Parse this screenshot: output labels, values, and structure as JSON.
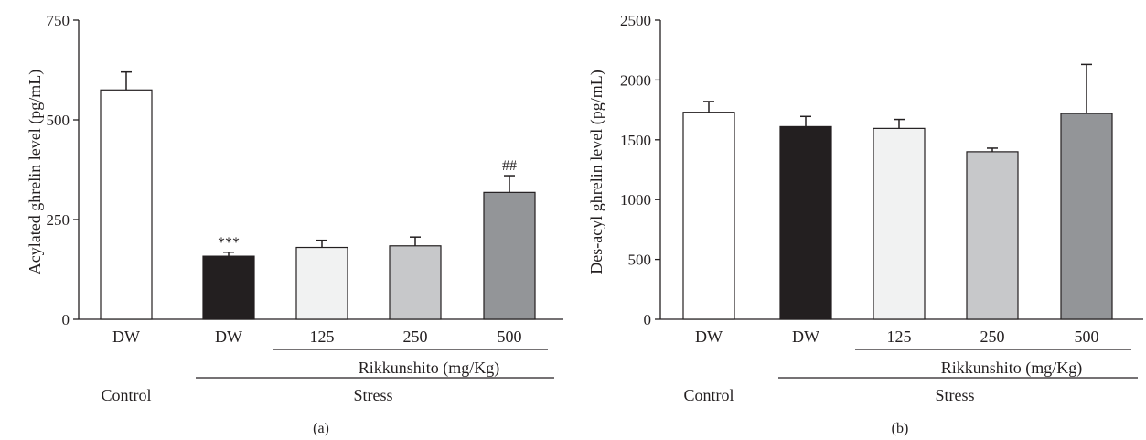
{
  "chart_data": [
    {
      "type": "bar",
      "panel_label": "(a)",
      "ylabel": "Acylated ghrelin level (pg/mL)",
      "ylim": [
        0,
        750
      ],
      "yticks": [
        "0",
        "250",
        "500",
        "750"
      ],
      "categories": [
        "DW",
        "DW",
        "125",
        "250",
        "500"
      ],
      "values": [
        575,
        158,
        180,
        184,
        318
      ],
      "errors": [
        45,
        10,
        18,
        22,
        42
      ],
      "bar_colors": [
        "#ffffff",
        "#231f20",
        "#f1f2f2",
        "#c7c8ca",
        "#939598"
      ],
      "annotations": [
        "",
        "***",
        "",
        "",
        "##"
      ],
      "group_labels": {
        "treatment": "Rikkunshito (mg/Kg)",
        "control": "Control",
        "stress": "Stress"
      }
    },
    {
      "type": "bar",
      "panel_label": "(b)",
      "ylabel": "Des-acyl ghrelin level (pg/mL)",
      "ylim": [
        0,
        2500
      ],
      "yticks": [
        "0",
        "500",
        "1000",
        "1500",
        "2000",
        "2500"
      ],
      "categories": [
        "DW",
        "DW",
        "125",
        "250",
        "500"
      ],
      "values": [
        1730,
        1610,
        1595,
        1400,
        1720
      ],
      "errors": [
        90,
        85,
        75,
        30,
        410
      ],
      "bar_colors": [
        "#ffffff",
        "#231f20",
        "#f1f2f2",
        "#c7c8ca",
        "#939598"
      ],
      "annotations": [
        "",
        "",
        "",
        "",
        ""
      ],
      "group_labels": {
        "treatment": "Rikkunshito (mg/Kg)",
        "control": "Control",
        "stress": "Stress"
      }
    }
  ]
}
